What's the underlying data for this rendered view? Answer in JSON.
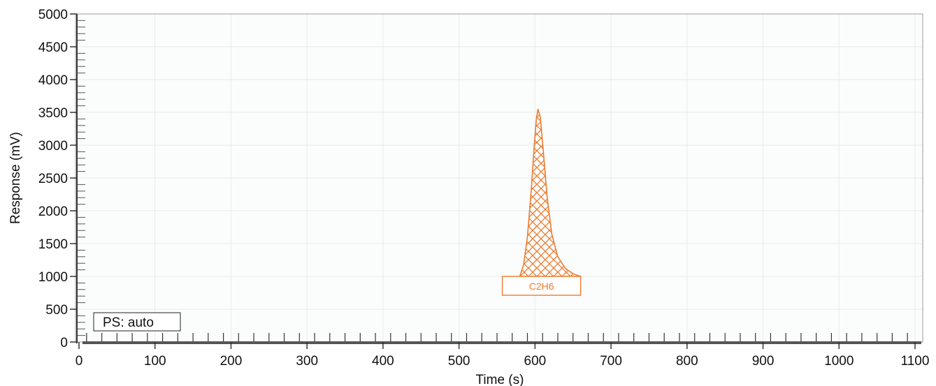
{
  "chart_data": {
    "type": "line",
    "xlabel": "Time (s)",
    "ylabel": "Response (mV)",
    "xlim": [
      0,
      1100
    ],
    "ylim": [
      0,
      5000
    ],
    "x_ticks": [
      0,
      100,
      200,
      300,
      400,
      500,
      600,
      700,
      800,
      900,
      1000,
      1100
    ],
    "y_ticks": [
      0,
      500,
      1000,
      1500,
      2000,
      2500,
      3000,
      3500,
      4000,
      4500,
      5000
    ],
    "grid": true,
    "baseline": 0,
    "peaks": [
      {
        "label": "C2H6",
        "apex_time": 604,
        "apex_response": 3550,
        "start_time": 580,
        "end_time": 660,
        "area_start_response": 1000,
        "area_end_response": 1000,
        "fill": "cross-hatch",
        "color": "#ee7a2e"
      }
    ],
    "peak_profile": [
      [
        580,
        1000
      ],
      [
        585,
        1180
      ],
      [
        590,
        1600
      ],
      [
        595,
        2300
      ],
      [
        599,
        3000
      ],
      [
        602,
        3420
      ],
      [
        604,
        3550
      ],
      [
        607,
        3420
      ],
      [
        611,
        2900
      ],
      [
        616,
        2200
      ],
      [
        622,
        1650
      ],
      [
        630,
        1300
      ],
      [
        640,
        1120
      ],
      [
        650,
        1040
      ],
      [
        660,
        1000
      ]
    ]
  },
  "annotation": {
    "ps_label": "PS: auto"
  },
  "colors": {
    "peak": "#ee7a2e",
    "axis": "#333333",
    "grid": "#e6ebe9",
    "plot_bg": "#fbfdfc"
  }
}
